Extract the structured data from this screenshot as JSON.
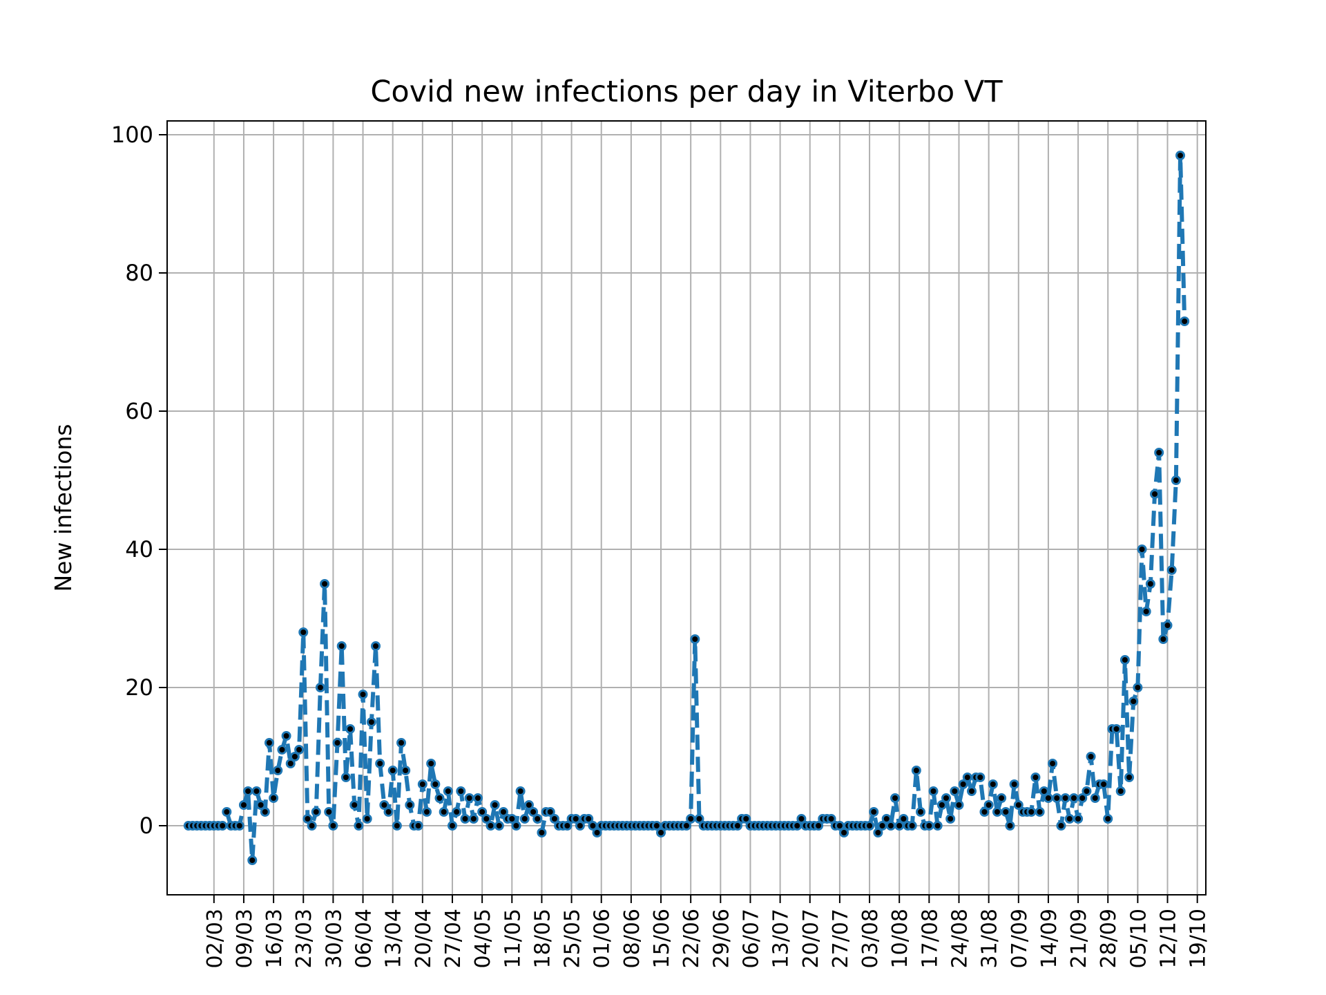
{
  "chart_data": {
    "type": "line",
    "title": "Covid new infections per day in Viterbo VT",
    "xlabel": "",
    "ylabel": "New infections",
    "ylim": [
      -10,
      102
    ],
    "yticks": [
      0,
      20,
      40,
      60,
      80,
      100
    ],
    "xticks": [
      "02/03",
      "09/03",
      "16/03",
      "23/03",
      "30/03",
      "06/04",
      "13/04",
      "20/04",
      "27/04",
      "04/05",
      "11/05",
      "18/05",
      "25/05",
      "01/06",
      "08/06",
      "15/06",
      "22/06",
      "29/06",
      "06/07",
      "13/07",
      "20/07",
      "27/07",
      "03/08",
      "10/08",
      "17/08",
      "24/08",
      "31/08",
      "07/09",
      "14/09",
      "21/09",
      "28/09",
      "05/10",
      "12/10",
      "19/10"
    ],
    "start_day": -6,
    "day_range": [
      -11,
      233
    ],
    "grid": true,
    "line_color": "#1f77b4",
    "marker_color": "#000000",
    "line_style": "dashed",
    "series": [
      {
        "values": [
          0,
          0,
          0,
          0,
          0,
          0,
          0,
          0,
          0,
          2,
          0,
          0,
          0,
          3,
          5,
          -5,
          5,
          3,
          2,
          12,
          4,
          8,
          11,
          13,
          9,
          10,
          11,
          28,
          1,
          0,
          2,
          20,
          35,
          2,
          0,
          12,
          26,
          7,
          14,
          3,
          0,
          19,
          1,
          15,
          26,
          9,
          3,
          2,
          8,
          0,
          12,
          8,
          3,
          0,
          0,
          6,
          2,
          9,
          6,
          4,
          2,
          5,
          0,
          2,
          5,
          1,
          4,
          1,
          4,
          2,
          1,
          0,
          3,
          0,
          2,
          1,
          1,
          0,
          5,
          1,
          3,
          2,
          1,
          -1,
          2,
          2,
          1,
          0,
          0,
          0,
          1,
          1,
          0,
          1,
          1,
          0,
          -1,
          0,
          0,
          0,
          0,
          0,
          0,
          0,
          0,
          0,
          0,
          0,
          0,
          0,
          0,
          -1,
          0,
          0,
          0,
          0,
          0,
          0,
          1,
          27,
          1,
          0,
          0,
          0,
          0,
          0,
          0,
          0,
          0,
          0,
          1,
          1,
          0,
          0,
          0,
          0,
          0,
          0,
          0,
          0,
          0,
          0,
          0,
          0,
          1,
          0,
          0,
          0,
          0,
          1,
          1,
          1,
          0,
          0,
          -1,
          0,
          0,
          0,
          0,
          0,
          0,
          2,
          -1,
          0,
          1,
          0,
          4,
          0,
          1,
          0,
          0,
          8,
          2,
          0,
          0,
          5,
          0,
          3,
          4,
          1,
          5,
          3,
          6,
          7,
          5,
          7,
          7,
          2,
          3,
          6,
          2,
          4,
          2,
          0,
          6,
          3,
          2,
          2,
          2,
          7,
          2,
          5,
          4,
          9,
          4,
          0,
          4,
          1,
          4,
          1,
          4,
          5,
          10,
          4,
          6,
          6,
          1,
          14,
          14,
          5,
          24,
          7,
          18,
          20,
          40,
          31,
          35,
          48,
          54,
          27,
          29,
          37,
          50,
          97,
          73
        ]
      }
    ]
  }
}
